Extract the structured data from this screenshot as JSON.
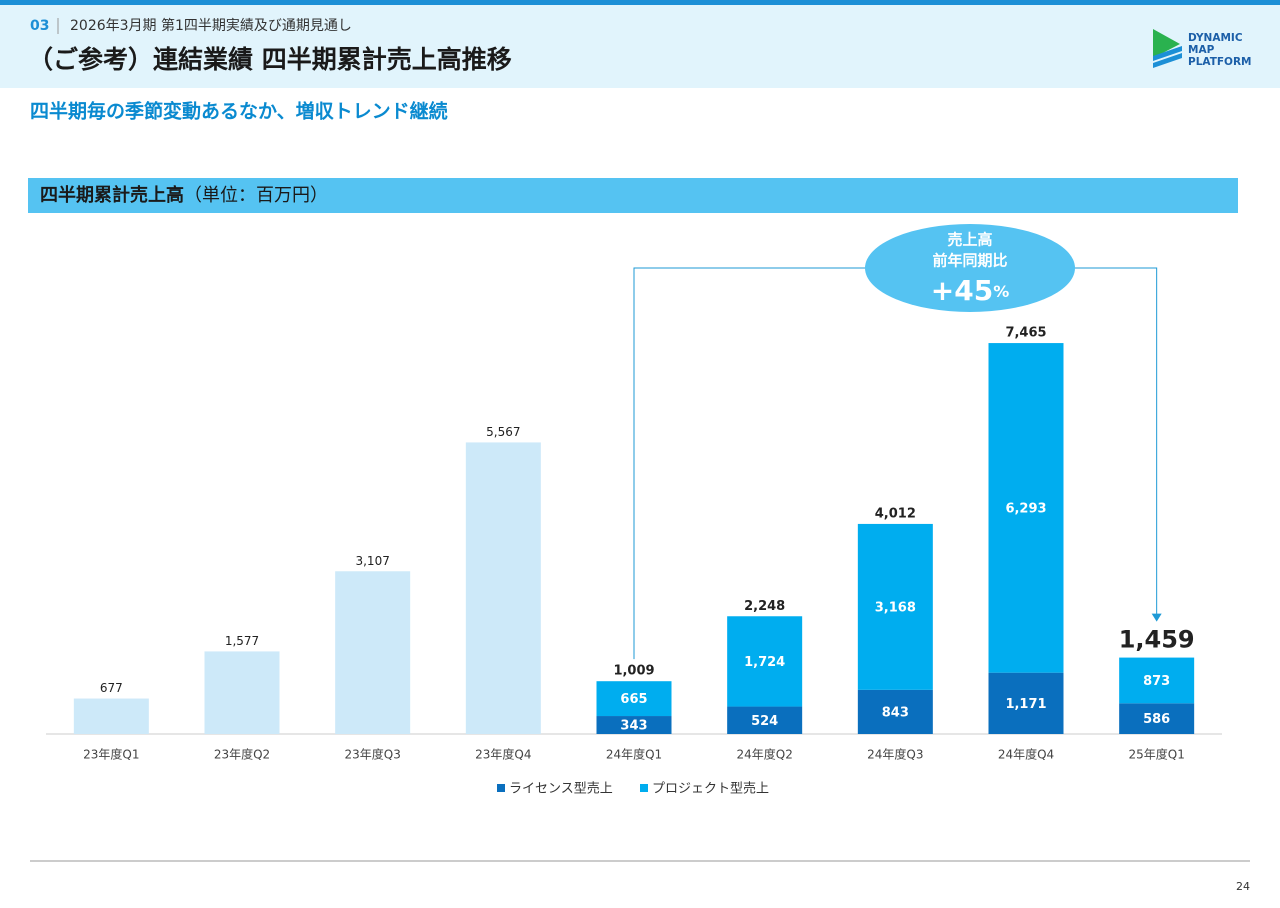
{
  "header": {
    "section": "03",
    "subtitle": "2026年3月期 第1四半期実績及び通期見通し",
    "title": "（ご参考）連結業績 四半期累計売上高推移",
    "logo": [
      "DYNAMIC",
      "MAP",
      "PLATFORM"
    ]
  },
  "lead": "四半期毎の季節変動あるなか、増収トレンド継続",
  "panel": {
    "title": "四半期累計売上高",
    "unit": "（単位：百万円）"
  },
  "chart_data": {
    "type": "stacked_bar",
    "categories": [
      "23年度Q1",
      "23年度Q2",
      "23年度Q3",
      "23年度Q4",
      "24年度Q1",
      "24年度Q2",
      "24年度Q3",
      "24年度Q4",
      "25年度Q1"
    ],
    "ylim": [
      0,
      8000
    ],
    "totals": {
      "color": "#cde9f9",
      "values": [
        677,
        1577,
        3107,
        5567,
        1009,
        2248,
        4012,
        7465,
        1459
      ],
      "value_labels": [
        "677",
        "1,577",
        "3,107",
        "5,567",
        "1,009",
        "2,248",
        "4,012",
        "7,465",
        "1,459"
      ]
    },
    "series": [
      {
        "name": "ライセンス型売上",
        "color": "#0a6fbe",
        "values": [
          null,
          null,
          null,
          null,
          343,
          524,
          843,
          1171,
          586
        ],
        "value_labels": [
          null,
          null,
          null,
          null,
          "343",
          "524",
          "843",
          "1,171",
          "586"
        ]
      },
      {
        "name": "プロジェクト型売上",
        "color": "#00adef",
        "values": [
          null,
          null,
          null,
          null,
          665,
          1724,
          3168,
          6293,
          873
        ],
        "value_labels": [
          null,
          null,
          null,
          null,
          "665",
          "1,724",
          "3,168",
          "6,293",
          "873"
        ]
      }
    ],
    "legend": "bottom",
    "annotation": {
      "lines": [
        "売上高",
        "前年同期比"
      ],
      "change": "+45",
      "unit": "%"
    }
  },
  "page_number": "24"
}
